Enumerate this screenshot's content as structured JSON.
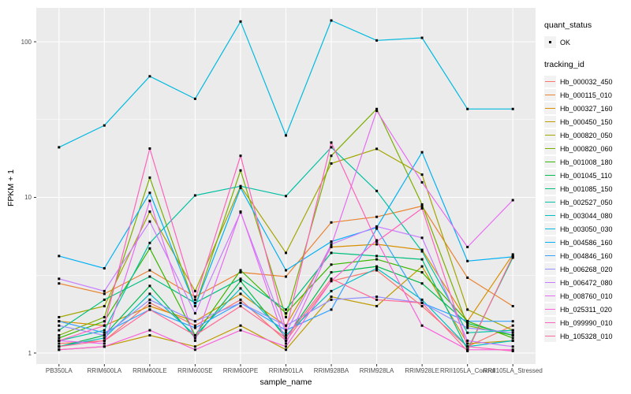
{
  "legend": {
    "quant_status": {
      "title": "quant_status",
      "items": [
        {
          "label": "OK",
          "marker": "black-square-point"
        }
      ]
    },
    "tracking_id": {
      "title": "tracking_id"
    }
  },
  "chart_data": {
    "type": "line",
    "title": "",
    "xlabel": "sample_name",
    "ylabel": "FPKM + 1",
    "y_scale": "log10",
    "y_ticks": [
      1,
      10,
      100
    ],
    "ylim": [
      0.85,
      175
    ],
    "grid": true,
    "legend_position": "right",
    "panel_bg": "#EBEBEB",
    "grid_color": "#FFFFFF",
    "point_color": "#000000",
    "tick_color": "#333333",
    "tick_label_color": "#4D4D4D",
    "categories": [
      "PB350LA",
      "RRIM600LA",
      "RRIM600LE",
      "RRIM600SE",
      "RRIM600PE",
      "RRIM901LA",
      "RRIM928BA",
      "RRIM928LA",
      "RRIM928LE",
      "RRII105LA_Control",
      "RRII105LA_Stressed"
    ],
    "series": [
      {
        "name": "Hb_000032_450",
        "color": "#F8766D",
        "values": [
          1.15,
          1.2,
          2.1,
          1.5,
          2.2,
          1.2,
          2.9,
          3.4,
          2.0,
          1.1,
          1.5
        ]
      },
      {
        "name": "Hb_000115_010",
        "color": "#EA8331",
        "values": [
          2.8,
          2.4,
          3.4,
          2.3,
          3.3,
          3.1,
          6.9,
          7.5,
          8.8,
          3.05,
          2.0
        ]
      },
      {
        "name": "Hb_000327_160",
        "color": "#D89000",
        "values": [
          1.6,
          1.5,
          2.0,
          1.6,
          2.4,
          1.5,
          4.8,
          5.0,
          4.6,
          1.6,
          4.3
        ]
      },
      {
        "name": "Hb_000450_150",
        "color": "#C09B00",
        "values": [
          1.05,
          1.1,
          1.3,
          1.1,
          1.5,
          1.05,
          2.3,
          2.0,
          3.6,
          1.15,
          1.2
        ]
      },
      {
        "name": "Hb_000820_050",
        "color": "#A3A500",
        "values": [
          1.7,
          2.0,
          8.1,
          2.5,
          11.8,
          4.4,
          16.5,
          20.5,
          14.0,
          1.9,
          1.4
        ]
      },
      {
        "name": "Hb_000820_060",
        "color": "#7CAE00",
        "values": [
          1.3,
          1.7,
          13.4,
          2.0,
          14.9,
          1.7,
          18.5,
          37.0,
          9.0,
          1.5,
          1.3
        ]
      },
      {
        "name": "Hb_001008_180",
        "color": "#39B600",
        "values": [
          1.25,
          1.6,
          4.7,
          1.3,
          3.4,
          1.8,
          3.7,
          4.0,
          3.3,
          1.6,
          1.25
        ]
      },
      {
        "name": "Hb_001045_110",
        "color": "#00BB4E",
        "values": [
          1.1,
          1.3,
          2.7,
          1.25,
          2.9,
          1.25,
          3.3,
          3.6,
          2.8,
          1.55,
          1.3
        ]
      },
      {
        "name": "Hb_001085_150",
        "color": "#00BF7D",
        "values": [
          1.4,
          2.2,
          3.1,
          2.1,
          3.0,
          1.9,
          4.4,
          4.2,
          4.0,
          1.05,
          4.1
        ]
      },
      {
        "name": "Hb_002527_050",
        "color": "#00C1A3",
        "values": [
          1.2,
          1.4,
          5.1,
          10.3,
          11.8,
          10.2,
          21.0,
          11.0,
          4.5,
          1.35,
          1.4
        ]
      },
      {
        "name": "Hb_003044_080",
        "color": "#00BFC4",
        "values": [
          1.1,
          1.25,
          2.4,
          1.3,
          2.6,
          1.3,
          2.5,
          3.5,
          2.2,
          1.1,
          1.2
        ]
      },
      {
        "name": "Hb_003050_030",
        "color": "#00BAE0",
        "values": [
          21,
          29,
          60,
          43,
          135,
          25,
          137,
          102,
          106,
          37,
          37
        ]
      },
      {
        "name": "Hb_004586_160",
        "color": "#00B0F6",
        "values": [
          4.2,
          3.5,
          10.7,
          2.0,
          11.5,
          3.4,
          5.2,
          6.4,
          19.5,
          3.9,
          4.15
        ]
      },
      {
        "name": "Hb_004846_160",
        "color": "#35A2FF",
        "values": [
          1.6,
          1.35,
          1.9,
          1.45,
          2.1,
          1.4,
          1.9,
          6.3,
          2.1,
          1.6,
          1.6
        ]
      },
      {
        "name": "Hb_006268_020",
        "color": "#9590FF",
        "values": [
          1.5,
          1.3,
          2.2,
          1.6,
          2.1,
          1.5,
          2.2,
          2.3,
          2.1,
          1.45,
          1.35
        ]
      },
      {
        "name": "Hb_006472_080",
        "color": "#C77CFF",
        "values": [
          3.0,
          2.5,
          7.0,
          1.8,
          8.0,
          1.35,
          5.0,
          6.5,
          5.5,
          1.2,
          1.1
        ]
      },
      {
        "name": "Hb_008760_010",
        "color": "#E76BF3",
        "values": [
          1.2,
          1.15,
          9.5,
          1.2,
          8.1,
          1.15,
          4.9,
          36.0,
          12.5,
          4.8,
          9.6
        ]
      },
      {
        "name": "Hb_025311_020",
        "color": "#FA62DB",
        "values": [
          1.05,
          1.1,
          1.4,
          1.05,
          1.4,
          1.1,
          2.9,
          5.3,
          1.5,
          1.05,
          1.05
        ]
      },
      {
        "name": "Hb_099990_010",
        "color": "#FF62BC",
        "values": [
          1.2,
          1.5,
          20.6,
          2.2,
          18.5,
          1.4,
          22.5,
          5.2,
          8.5,
          1.1,
          1.03
        ]
      },
      {
        "name": "Hb_105328_010",
        "color": "#FF6A98",
        "values": [
          1.1,
          1.2,
          1.9,
          1.3,
          2.0,
          1.25,
          3.0,
          2.2,
          2.1,
          1.03,
          4.2
        ]
      }
    ]
  }
}
